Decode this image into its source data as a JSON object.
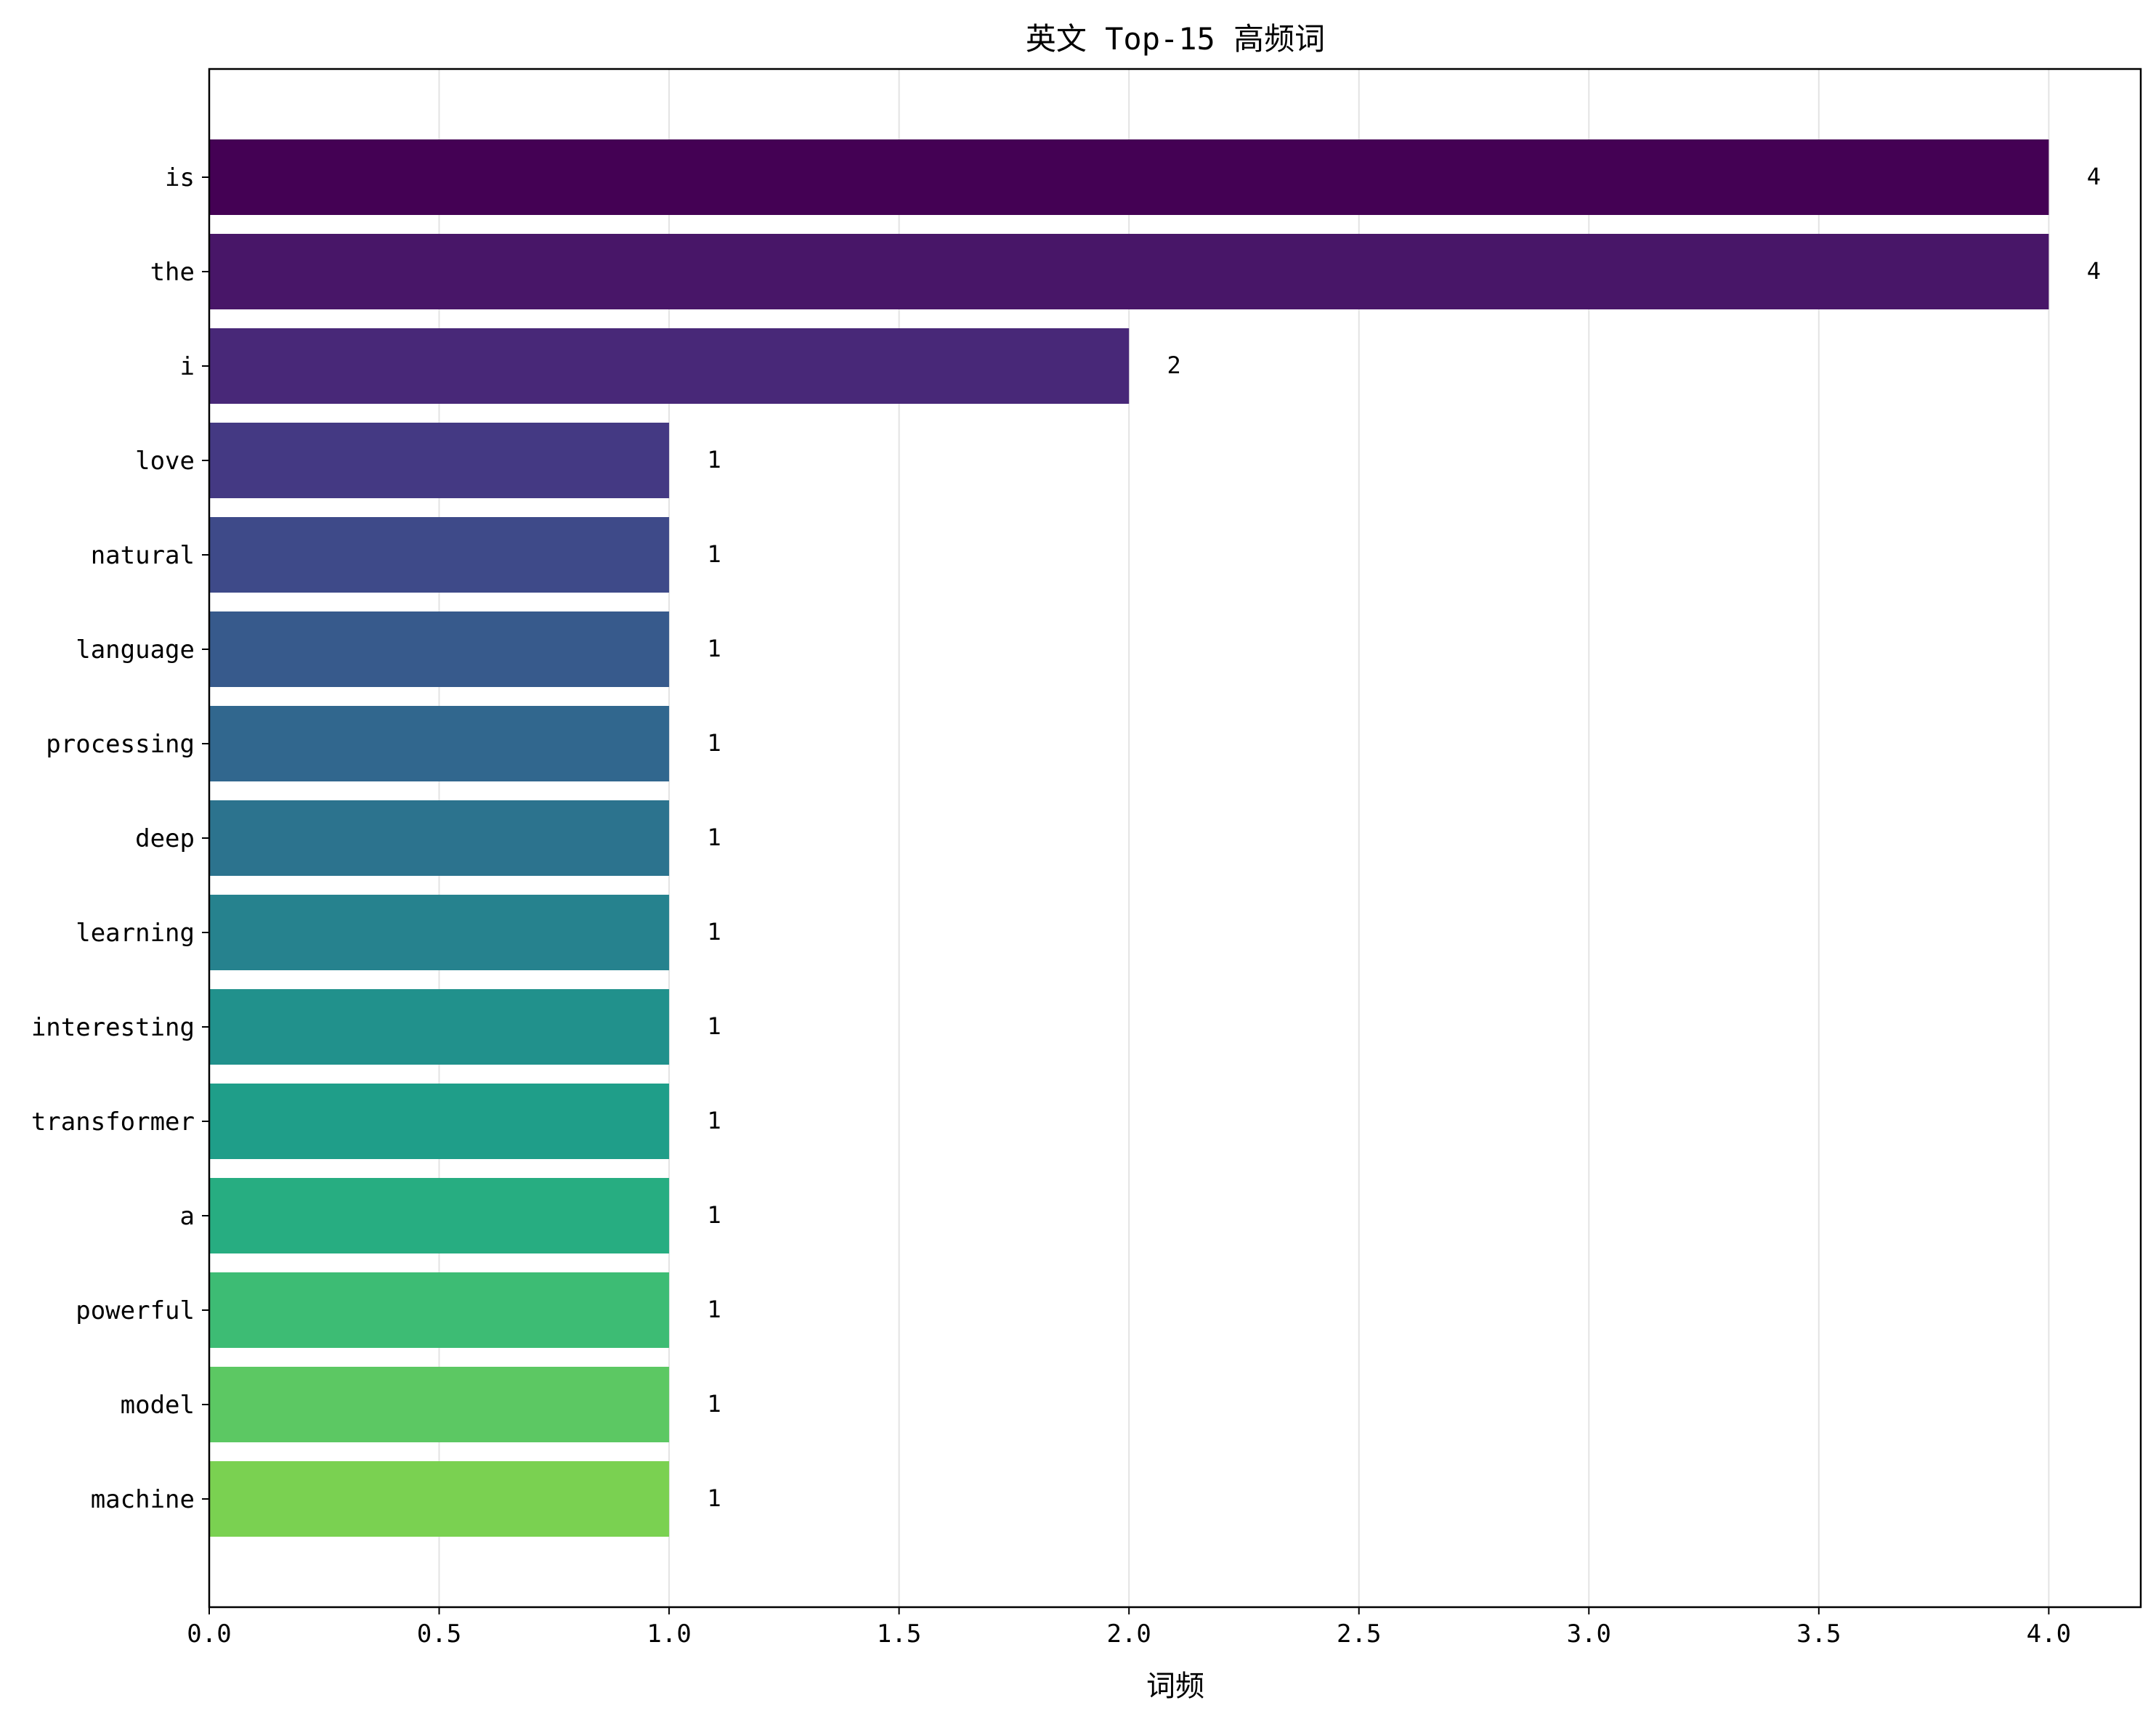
{
  "chart_data": {
    "type": "bar",
    "orientation": "horizontal",
    "title": "英文 Top-15 高频词",
    "xlabel": "词频",
    "ylabel": "",
    "categories": [
      "is",
      "the",
      "i",
      "love",
      "natural",
      "language",
      "processing",
      "deep",
      "learning",
      "interesting",
      "transformer",
      "a",
      "powerful",
      "model",
      "machine"
    ],
    "values": [
      4,
      4,
      2,
      1,
      1,
      1,
      1,
      1,
      1,
      1,
      1,
      1,
      1,
      1,
      1
    ],
    "data_labels": [
      "4",
      "4",
      "2",
      "1",
      "1",
      "1",
      "1",
      "1",
      "1",
      "1",
      "1",
      "1",
      "1",
      "1",
      "1"
    ],
    "xlim": [
      0,
      4.2
    ],
    "xticks": [
      0.0,
      0.5,
      1.0,
      1.5,
      2.0,
      2.5,
      3.0,
      3.5,
      4.0
    ],
    "xtick_labels": [
      "0.0",
      "0.5",
      "1.0",
      "1.5",
      "2.0",
      "2.5",
      "3.0",
      "3.5",
      "4.0"
    ],
    "grid": "vertical",
    "legend": "none",
    "colormap": "viridis",
    "colors": [
      "#440154",
      "#481668",
      "#482878",
      "#443983",
      "#3e4a89",
      "#375a8c",
      "#31678e",
      "#2c738e",
      "#26828e",
      "#21918c",
      "#1f9e89",
      "#27ad81",
      "#3dbc74",
      "#5cc863",
      "#7ad151"
    ]
  }
}
